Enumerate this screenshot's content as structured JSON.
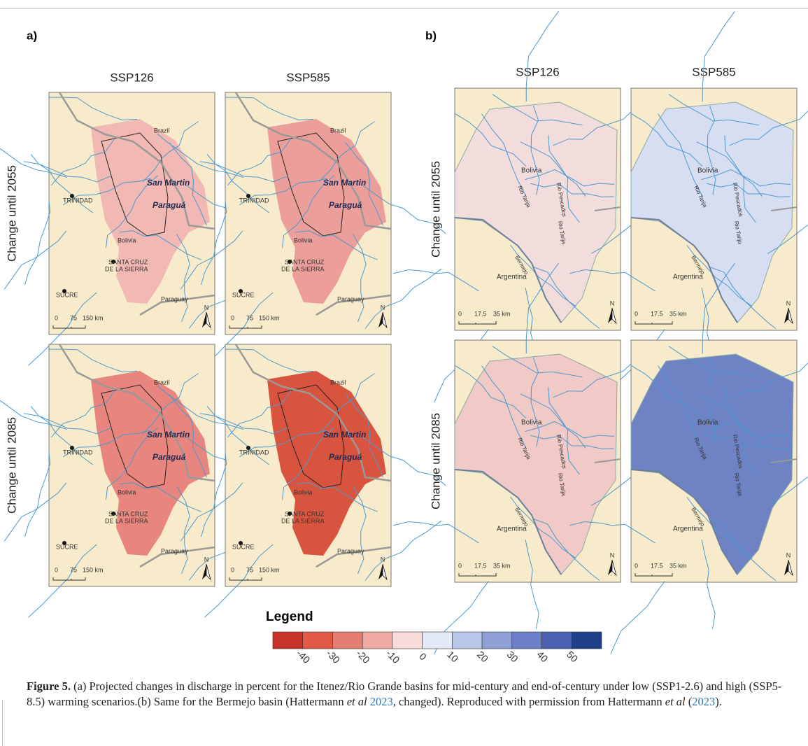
{
  "panel_a": {
    "label": "a)",
    "columns": [
      "SSP126",
      "SSP585"
    ],
    "rows": [
      "Change until 2055",
      "Change until 2085"
    ],
    "places": [
      "Brazil",
      "TRINIDAD",
      "San Martin",
      "Paraguá",
      "Bolivia",
      "SANTA CRUZ",
      "DE LA SIERRA",
      "SUCRE",
      "Paraguay"
    ],
    "scale": [
      "0",
      "75",
      "150 km"
    ],
    "north": "N"
  },
  "panel_b": {
    "label": "b)",
    "columns": [
      "SSP126",
      "SSP585"
    ],
    "rows": [
      "Change until 2055",
      "Change until 2085"
    ],
    "places": [
      "Bolivia",
      "Rio Tarija",
      "Rio Pescados",
      "Rio Tarija",
      "Bermejo",
      "Argentina"
    ],
    "scale": [
      "0",
      "17.5",
      "35 km"
    ],
    "north": "N"
  },
  "legend": {
    "title": "Legend",
    "colors": [
      "#c8322a",
      "#e05a45",
      "#e47d72",
      "#f0aaa6",
      "#f9dcd9",
      "#e3e9f7",
      "#b9c6e8",
      "#8ea0d6",
      "#6b80c6",
      "#4a62b1",
      "#1f3f8a"
    ],
    "ticks": [
      -40,
      -30,
      -20,
      -10,
      0,
      10,
      20,
      30,
      40,
      50
    ]
  },
  "caption": {
    "label": "Figure 5.",
    "text1": "(a) Projected changes in discharge in percent for the Itenez/Rio Grande basins for mid-century and end-of-century under low (SSP1-2.6) and high (SSP5-8.5) warming scenarios.(b) Same for the Bermejo basin (Hattermann",
    "em1": "et al",
    "link1": "2023",
    "text2": ", changed). Reproduced with permission from Hattermann",
    "em2": "et al",
    "text3": "(",
    "link2": "2023",
    "text4": ")."
  }
}
